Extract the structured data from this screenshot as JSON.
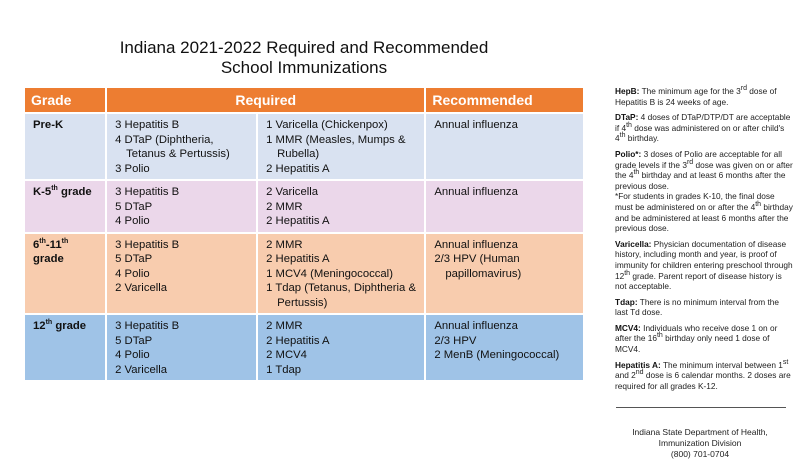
{
  "title": {
    "line1": "Indiana 2021-2022 Required and Recommended",
    "line2": "School Immunizations"
  },
  "colors": {
    "header": "#ED7D31",
    "prek": "#D9E2F1",
    "k5": "#EBD7EA",
    "g6_11": "#F8CCAE",
    "g12": "#9FC3E7"
  },
  "table": {
    "headers": {
      "grade": "Grade",
      "required": "Required",
      "recommended": "Recommended"
    },
    "rows": [
      {
        "grade": [
          {
            "t": "Pre-K"
          }
        ],
        "color": "prek",
        "req1": [
          [
            {
              "t": "3 Hepatitis B"
            }
          ],
          [
            {
              "t": "4 DTaP (Diphtheria, Tetanus & Pertussis)"
            }
          ],
          [
            {
              "t": "3 Polio"
            }
          ]
        ],
        "req2": [
          [
            {
              "t": "1 Varicella (Chickenpox)"
            }
          ],
          [
            {
              "t": "1 MMR (Measles, Mumps & Rubella)"
            }
          ],
          [
            {
              "t": "2 Hepatitis A"
            }
          ]
        ],
        "rec": [
          [
            {
              "t": "Annual influenza"
            }
          ]
        ]
      },
      {
        "grade": [
          {
            "t": "K-5"
          },
          {
            "s": "th"
          },
          {
            "t": " grade"
          }
        ],
        "color": "k5",
        "req1": [
          [
            {
              "t": "3 Hepatitis B"
            }
          ],
          [
            {
              "t": "5 DTaP"
            }
          ],
          [
            {
              "t": "4 Polio"
            }
          ]
        ],
        "req2": [
          [
            {
              "t": "2 Varicella"
            }
          ],
          [
            {
              "t": "2 MMR"
            }
          ],
          [
            {
              "t": "2 Hepatitis A"
            }
          ]
        ],
        "rec": [
          [
            {
              "t": "Annual influenza"
            }
          ]
        ]
      },
      {
        "grade": [
          {
            "t": "6"
          },
          {
            "s": "th"
          },
          {
            "t": "-11"
          },
          {
            "s": "th"
          },
          {
            "t": " grade"
          }
        ],
        "color": "g6_11",
        "req1": [
          [
            {
              "t": "3 Hepatitis B"
            }
          ],
          [
            {
              "t": "5 DTaP"
            }
          ],
          [
            {
              "t": "4 Polio"
            }
          ],
          [
            {
              "t": "2 Varicella"
            }
          ]
        ],
        "req2": [
          [
            {
              "t": "2 MMR"
            }
          ],
          [
            {
              "t": "2 Hepatitis A"
            }
          ],
          [
            {
              "t": "1 MCV4 (Meningococcal)"
            }
          ],
          [
            {
              "t": "1 Tdap (Tetanus, Diphtheria & Pertussis)"
            }
          ]
        ],
        "rec": [
          [
            {
              "t": "Annual influenza"
            }
          ],
          [
            {
              "t": "2/3 HPV (Human papillomavirus)"
            }
          ]
        ]
      },
      {
        "grade": [
          {
            "t": "12"
          },
          {
            "s": "th"
          },
          {
            "t": " grade"
          }
        ],
        "color": "g12",
        "req1": [
          [
            {
              "t": "3 Hepatitis B"
            }
          ],
          [
            {
              "t": "5 DTaP"
            }
          ],
          [
            {
              "t": "4 Polio"
            }
          ],
          [
            {
              "t": "2 Varicella"
            }
          ]
        ],
        "req2": [
          [
            {
              "t": "2 MMR"
            }
          ],
          [
            {
              "t": "2 Hepatitis A"
            }
          ],
          [
            {
              "t": "2 MCV4"
            }
          ],
          [
            {
              "t": "1 Tdap"
            }
          ]
        ],
        "rec": [
          [
            {
              "t": "Annual influenza"
            }
          ],
          [
            {
              "t": "2/3 HPV"
            }
          ],
          [
            {
              "t": "2 MenB (Meningococcal)"
            }
          ]
        ]
      }
    ]
  },
  "notes": [
    {
      "label": "HepB:",
      "text": [
        {
          "t": " The minimum age for the 3"
        },
        {
          "s": "rd"
        },
        {
          "t": " dose of Hepatitis B is 24 weeks of age."
        }
      ]
    },
    {
      "label": "DTaP:",
      "text": [
        {
          "t": " 4 doses of DTaP/DTP/DT are acceptable if 4"
        },
        {
          "s": "th"
        },
        {
          "t": " dose was administered on or after child's 4"
        },
        {
          "s": "th"
        },
        {
          "t": " birthday."
        }
      ]
    },
    {
      "label": "Polio*:",
      "text": [
        {
          "t": " 3 doses of Polio are acceptable for all grade levels if the 3"
        },
        {
          "s": "rd"
        },
        {
          "t": " dose was given on or after the 4"
        },
        {
          "s": "th"
        },
        {
          "t": " birthday and at least 6 months after the previous dose."
        },
        {
          "br": true
        },
        {
          "t": "*For students in grades K-10, the final dose must be administered on or after the 4"
        },
        {
          "s": "th"
        },
        {
          "t": " birthday and be administered at least 6 months after the previous dose."
        }
      ]
    },
    {
      "label": "Varicella:",
      "text": [
        {
          "t": " Physician documentation of disease history, including month and year, is proof of immunity for children entering preschool through 12"
        },
        {
          "s": "th"
        },
        {
          "t": " grade. Parent report of disease history is not acceptable."
        }
      ]
    },
    {
      "label": "Tdap:",
      "text": [
        {
          "t": " There is no minimum interval from the last Td dose."
        }
      ]
    },
    {
      "label": "MCV4:",
      "text": [
        {
          "t": " Individuals who receive dose 1 on or after the 16"
        },
        {
          "s": "th"
        },
        {
          "t": " birthday only need 1 dose of MCV4."
        }
      ]
    },
    {
      "label": "Hepatitis A:",
      "text": [
        {
          "t": " The minimum interval between 1"
        },
        {
          "s": "st"
        },
        {
          "t": " and 2"
        },
        {
          "s": "nd"
        },
        {
          "t": " dose is 6 calendar months. 2 doses are required for all grades K-12."
        }
      ]
    }
  ],
  "footer": {
    "line1": "Indiana State Department of Health,",
    "line2": "Immunization Division",
    "line3": "(800) 701-0704"
  }
}
